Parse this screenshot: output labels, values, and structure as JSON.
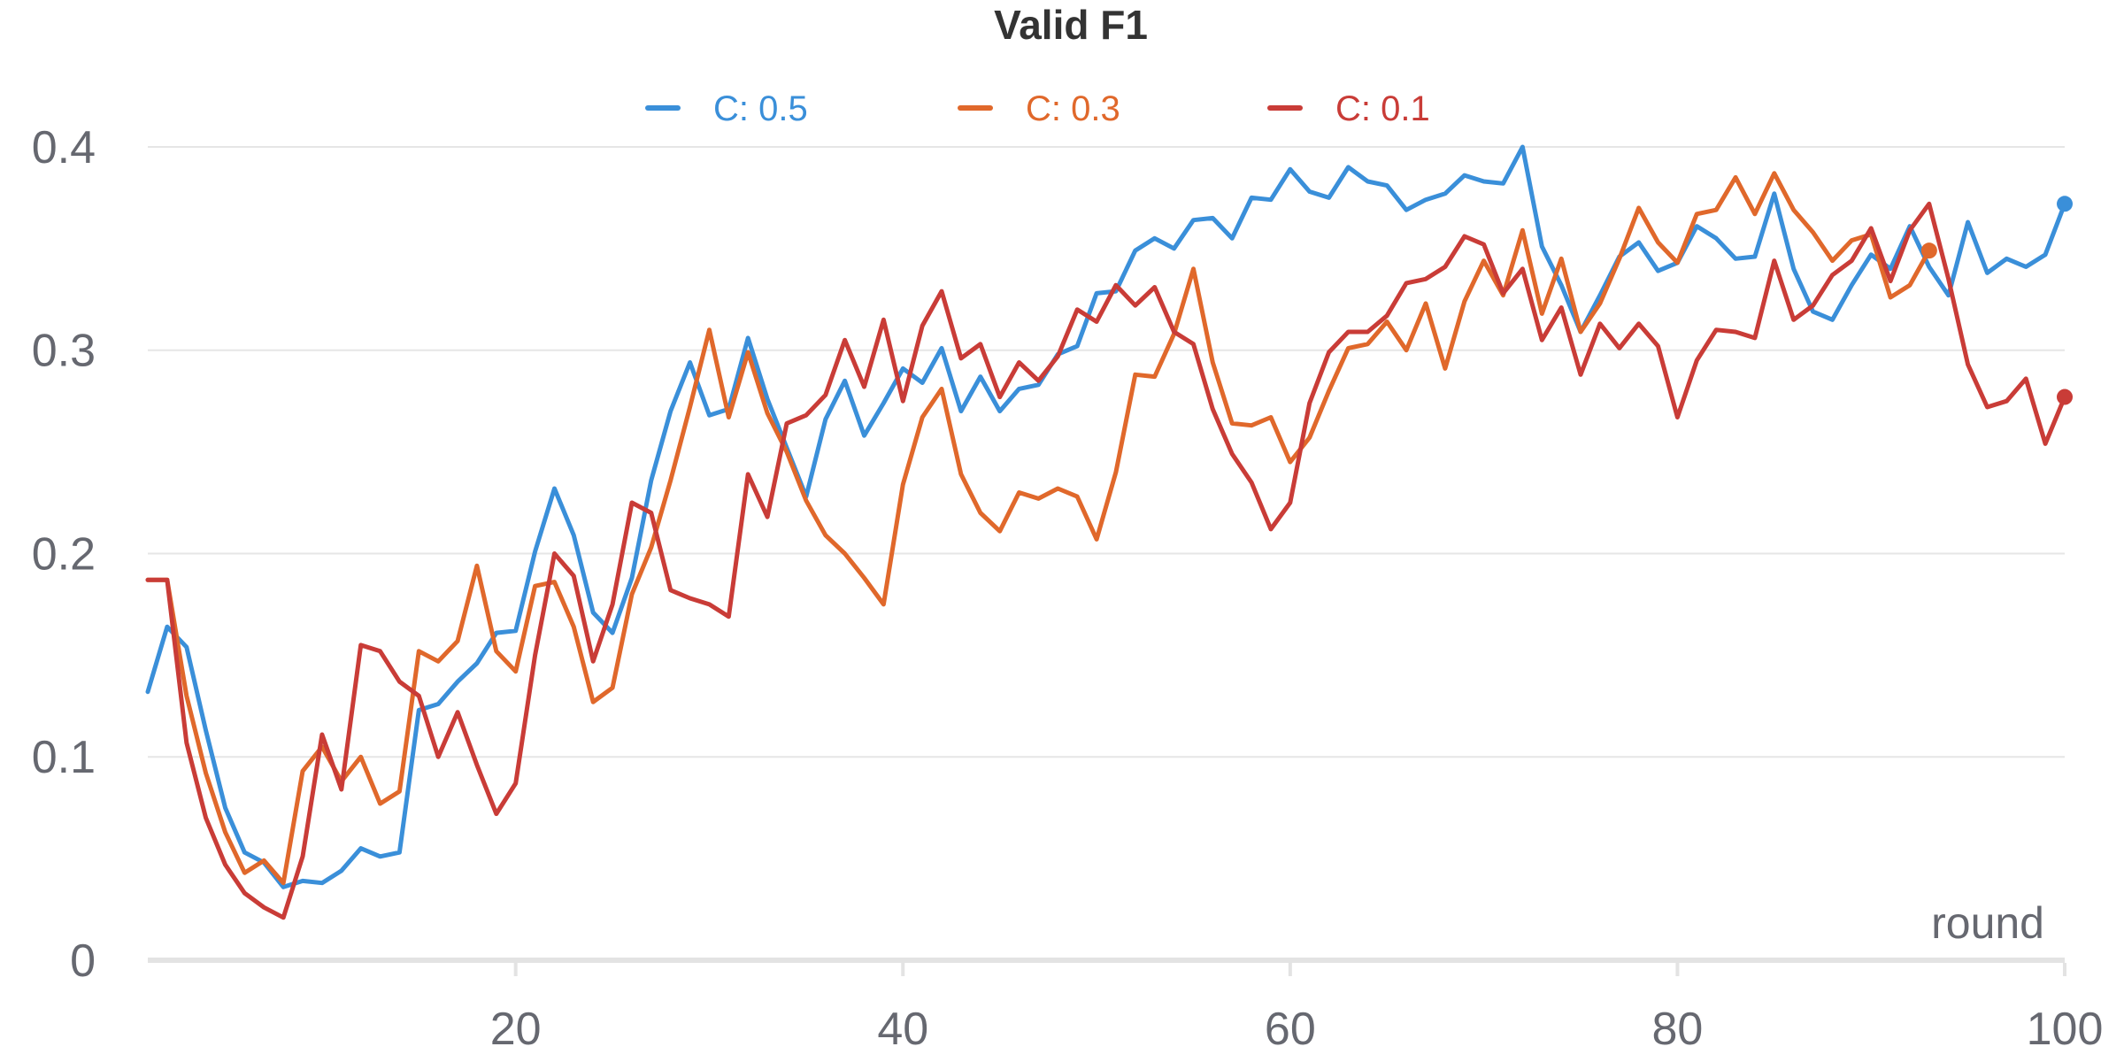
{
  "chart_data": {
    "type": "line",
    "title": "Valid F1",
    "xlabel": "round",
    "ylabel": "",
    "xlim": [
      1,
      100
    ],
    "ylim": [
      0,
      0.42
    ],
    "x_ticks": [
      20,
      40,
      60,
      80,
      100
    ],
    "y_ticks": [
      0,
      0.1,
      0.2,
      0.3,
      0.4
    ],
    "y_tick_labels": [
      "0",
      "0.1",
      "0.2",
      "0.3",
      "0.4"
    ],
    "grid": true,
    "legend_position": "top-center",
    "series": [
      {
        "name": "C: 0.5",
        "color": "#3a8fd9",
        "values": [
          0.132,
          0.164,
          0.154,
          0.113,
          0.075,
          0.053,
          0.048,
          0.036,
          0.039,
          0.038,
          0.044,
          0.055,
          0.051,
          0.053,
          0.123,
          0.126,
          0.137,
          0.146,
          0.161,
          0.162,
          0.201,
          0.232,
          0.209,
          0.171,
          0.161,
          0.188,
          0.236,
          0.27,
          0.294,
          0.268,
          0.271,
          0.306,
          0.276,
          0.252,
          0.228,
          0.266,
          0.285,
          0.258,
          0.274,
          0.291,
          0.284,
          0.301,
          0.27,
          0.287,
          0.27,
          0.281,
          0.283,
          0.298,
          0.302,
          0.328,
          0.329,
          0.349,
          0.355,
          0.35,
          0.364,
          0.365,
          0.355,
          0.375,
          0.374,
          0.389,
          0.378,
          0.375,
          0.39,
          0.383,
          0.381,
          0.369,
          0.374,
          0.377,
          0.386,
          0.383,
          0.382,
          0.4,
          0.351,
          0.332,
          0.309,
          0.327,
          0.346,
          0.353,
          0.339,
          0.343,
          0.361,
          0.355,
          0.345,
          0.346,
          0.377,
          0.34,
          0.319,
          0.315,
          0.332,
          0.347,
          0.34,
          0.361,
          0.341,
          0.327,
          0.363,
          0.338,
          0.345,
          0.341,
          0.347,
          0.372
        ]
      },
      {
        "name": "C: 0.3",
        "color": "#e0682b",
        "values": [
          0.187,
          0.187,
          0.13,
          0.092,
          0.063,
          0.043,
          0.049,
          0.038,
          0.093,
          0.105,
          0.088,
          0.1,
          0.077,
          0.083,
          0.152,
          0.147,
          0.157,
          0.194,
          0.152,
          0.142,
          0.184,
          0.186,
          0.164,
          0.127,
          0.134,
          0.18,
          0.203,
          0.236,
          0.272,
          0.31,
          0.267,
          0.299,
          0.269,
          0.25,
          0.226,
          0.209,
          0.2,
          0.188,
          0.175,
          0.234,
          0.267,
          0.281,
          0.239,
          0.22,
          0.211,
          0.23,
          0.227,
          0.232,
          0.228,
          0.207,
          0.24,
          0.288,
          0.287,
          0.308,
          0.34,
          0.294,
          0.264,
          0.263,
          0.267,
          0.245,
          0.257,
          0.28,
          0.301,
          0.303,
          0.314,
          0.3,
          0.323,
          0.291,
          0.324,
          0.344,
          0.327,
          0.359,
          0.318,
          0.345,
          0.309,
          0.323,
          0.345,
          0.37,
          0.353,
          0.343,
          0.367,
          0.369,
          0.385,
          0.367,
          0.387,
          0.369,
          0.358,
          0.344,
          0.354,
          0.357,
          0.326,
          0.332,
          0.349
        ]
      },
      {
        "name": "C: 0.1",
        "color": "#c93c37",
        "values": [
          0.187,
          0.187,
          0.107,
          0.07,
          0.047,
          0.033,
          0.026,
          0.021,
          0.051,
          0.111,
          0.084,
          0.155,
          0.152,
          0.137,
          0.13,
          0.1,
          0.122,
          0.096,
          0.072,
          0.087,
          0.15,
          0.2,
          0.189,
          0.147,
          0.175,
          0.225,
          0.22,
          0.182,
          0.178,
          0.175,
          0.169,
          0.239,
          0.218,
          0.264,
          0.268,
          0.278,
          0.305,
          0.282,
          0.315,
          0.275,
          0.312,
          0.329,
          0.296,
          0.303,
          0.277,
          0.294,
          0.285,
          0.297,
          0.32,
          0.314,
          0.332,
          0.322,
          0.331,
          0.309,
          0.303,
          0.271,
          0.249,
          0.235,
          0.212,
          0.225,
          0.274,
          0.299,
          0.309,
          0.309,
          0.317,
          0.333,
          0.335,
          0.341,
          0.356,
          0.352,
          0.328,
          0.34,
          0.305,
          0.321,
          0.288,
          0.313,
          0.301,
          0.313,
          0.302,
          0.267,
          0.295,
          0.31,
          0.309,
          0.306,
          0.344,
          0.315,
          0.322,
          0.337,
          0.344,
          0.36,
          0.334,
          0.359,
          0.372,
          0.335,
          0.293,
          0.272,
          0.275,
          0.286,
          0.254,
          0.277
        ]
      }
    ]
  }
}
